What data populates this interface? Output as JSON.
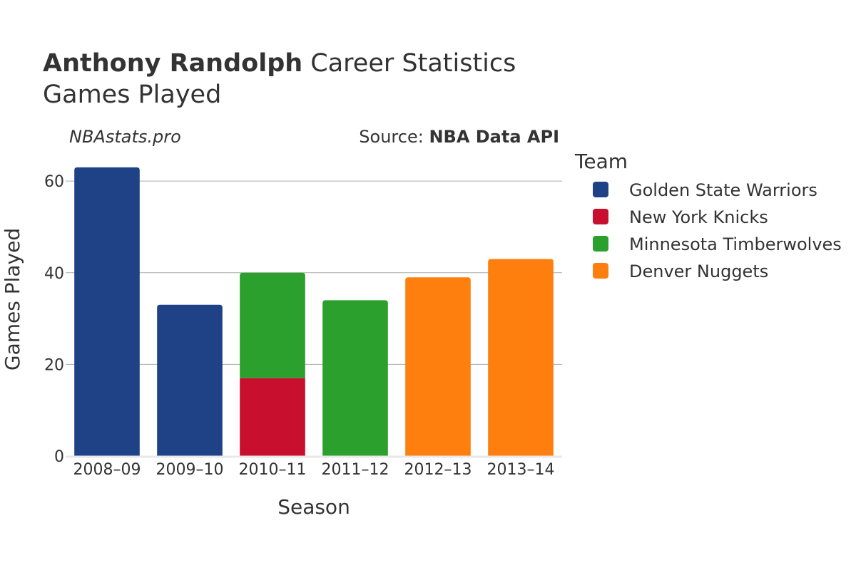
{
  "header": {
    "player_name": "Anthony Randolph",
    "title_rest": " Career Statistics",
    "subtitle": "Games Played",
    "watermark": "NBAstats.pro",
    "source_prefix": "Source: ",
    "source_name": "NBA Data API"
  },
  "legend": {
    "title": "Team"
  },
  "colors": {
    "Golden State Warriors": "#1f4287",
    "New York Knicks": "#c8102e",
    "Minnesota Timberwolves": "#2ca02c",
    "Denver Nuggets": "#ff7f0e",
    "grid": "#aaaaaa",
    "baseline": "#e8e8e8"
  },
  "chart_data": {
    "type": "bar",
    "stacked": true,
    "title": "Anthony Randolph Career Statistics",
    "subtitle": "Games Played",
    "xlabel": "Season",
    "ylabel": "Games Played",
    "categories": [
      "2008–09",
      "2009–10",
      "2010–11",
      "2011–12",
      "2012–13",
      "2013–14"
    ],
    "ylim": [
      0,
      65
    ],
    "yticks": [
      0,
      20,
      40,
      60
    ],
    "grid": true,
    "legend_position": "right",
    "series": [
      {
        "name": "Golden State Warriors",
        "values": [
          63,
          33,
          0,
          0,
          0,
          0
        ]
      },
      {
        "name": "New York Knicks",
        "values": [
          0,
          0,
          17,
          0,
          0,
          0
        ]
      },
      {
        "name": "Minnesota Timberwolves",
        "values": [
          0,
          0,
          23,
          34,
          0,
          0
        ]
      },
      {
        "name": "Denver Nuggets",
        "values": [
          0,
          0,
          0,
          0,
          39,
          43
        ]
      }
    ]
  }
}
